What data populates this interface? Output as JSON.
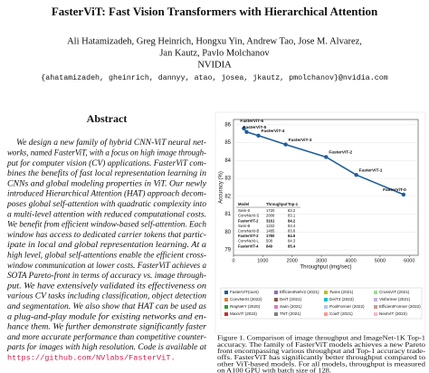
{
  "title": "FasterViT: Fast Vision Transformers with Hierarchical Attention",
  "authors": [
    "Ali Hatamizadeh, Greg Heinrich, Hongxu Yin, Andrew Tao, Jose M. Alvarez,",
    "Jan Kautz, Pavlo Molchanov"
  ],
  "affiliation": "NVIDIA",
  "emails": "{ahatamizadeh, gheinrich, dannyy, atao, josea, jkautz, pmolchanov}@nvidia.com",
  "abstract": {
    "heading": "Abstract",
    "lines": [
      "We design a new family of hybrid CNN-ViT neural net-",
      "works, named FasterViT, with a focus on high image through-",
      "put for computer vision (CV) applications. FasterViT com-",
      "bines the benefits of fast local representation learning in",
      "CNNs and global modeling properties in ViT. Our newly",
      "introduced Hierarchical Attention (HAT) approach decom-",
      "poses global self-attention with quadratic complexity into",
      "a multi-level attention with reduced computational costs.",
      "We benefit from efficient window-based self-attention. Each",
      "window has access to dedicated carrier tokens that partic-",
      "ipate in local and global representation learning. At a",
      "high level, global self-attentions enable the efficient cross-",
      "window communication at lower costs. FasterViT achieves a",
      "SOTA Pareto-front in terms of accuracy vs. image through-",
      "put. We have extensively validated its effectiveness on",
      "various CV tasks including classification, object detection",
      "and segmentation. We also show that HAT can be used as",
      "a plug-and-play module for existing networks and en-",
      "hance them. We further demonstrate significantly faster",
      "and more accurate performance than competitive counter-",
      "parts for images with high resolution. Code is available at"
    ],
    "link": "https://github.com/NVlabs/FasterViT."
  },
  "figure": {
    "chart_data": {
      "type": "line",
      "xlabel": "Throughput (img/sec)",
      "ylabel": "Accuracy (%)",
      "xlim": [
        0,
        6300
      ],
      "ylim": [
        78.7,
        86.3
      ],
      "xticks": [
        0,
        1000,
        2000,
        3000,
        4000,
        5000,
        6000
      ],
      "yticks": [
        79,
        80,
        81,
        82,
        83,
        84,
        85,
        86
      ],
      "series": [
        {
          "name": "FasterViT(ours)",
          "color": "#1f5f9c",
          "point_labels": [
            "FasterViT-6",
            "FasterViT-5",
            "FasterViT-4",
            "FasterViT-3",
            "FasterViT-2",
            "FasterViT-1",
            "FasterViT-0"
          ],
          "x": [
            352,
            449,
            849,
            1780,
            3161,
            4188,
            5802
          ],
          "values": [
            85.8,
            85.6,
            85.4,
            84.9,
            84.2,
            83.2,
            82.1
          ]
        }
      ],
      "other_models": [
        {
          "name": "ConvNeXt (2022)",
          "color": "#e07b39"
        },
        {
          "name": "RegNetY (2020)",
          "color": "#2ca02c"
        },
        {
          "name": "MaxViT (2022)",
          "color": "#d62728"
        },
        {
          "name": "EfficientNetV2 (2021)",
          "color": "#9467bd"
        },
        {
          "name": "DeiT (2021)",
          "color": "#8c564b"
        },
        {
          "name": "Swin (2021)",
          "color": "#e377c2"
        },
        {
          "name": "TNT (2021)",
          "color": "#7f7f7f"
        },
        {
          "name": "Twins (2021)",
          "color": "#bcbd22"
        },
        {
          "name": "DeiT3 (2022)",
          "color": "#17becf"
        },
        {
          "name": "PoolFormer (2022)",
          "color": "#aec7e8"
        },
        {
          "name": "CoaT (2021)",
          "color": "#ff9896"
        },
        {
          "name": "CrossViT (2021)",
          "color": "#98df8a"
        },
        {
          "name": "Visformer (2021)",
          "color": "#c5b0d5"
        },
        {
          "name": "EfficientFormer (2022)",
          "color": "#c49c94"
        },
        {
          "name": "NextViT (2022)",
          "color": "#f7b6d2"
        }
      ],
      "table": {
        "header": [
          "Model",
          "Throughput",
          "Top-1"
        ],
        "rows": [
          [
            "Swin-S",
            "1720",
            "83.2"
          ],
          [
            "ConvNeXt-S",
            "2008",
            "83.1"
          ],
          [
            "FasterViT-2",
            "3161",
            "84.2"
          ],
          [
            "Swin-B",
            "1232",
            "83.4"
          ],
          [
            "ConvNeXt-B",
            "1485",
            "83.8"
          ],
          [
            "FasterViT-3",
            "1780",
            "84.9"
          ],
          [
            "ConvNeXt-L",
            "508",
            "84.3"
          ],
          [
            "FasterViT-4",
            "849",
            "85.4"
          ]
        ]
      }
    },
    "caption": [
      "Figure 1. Comparison of image throughput and ImageNet-1K Top-1",
      "accuracy. The family of FasterViT models achieves a new Pareto",
      "front encompassing various throughput and Top-1 accuracy trade-",
      "offs. FasterViT has significantly better throughput compared to",
      "other ViT-based models. For all models, throughput is measured",
      "on A100 GPU with batch size of 128."
    ]
  }
}
